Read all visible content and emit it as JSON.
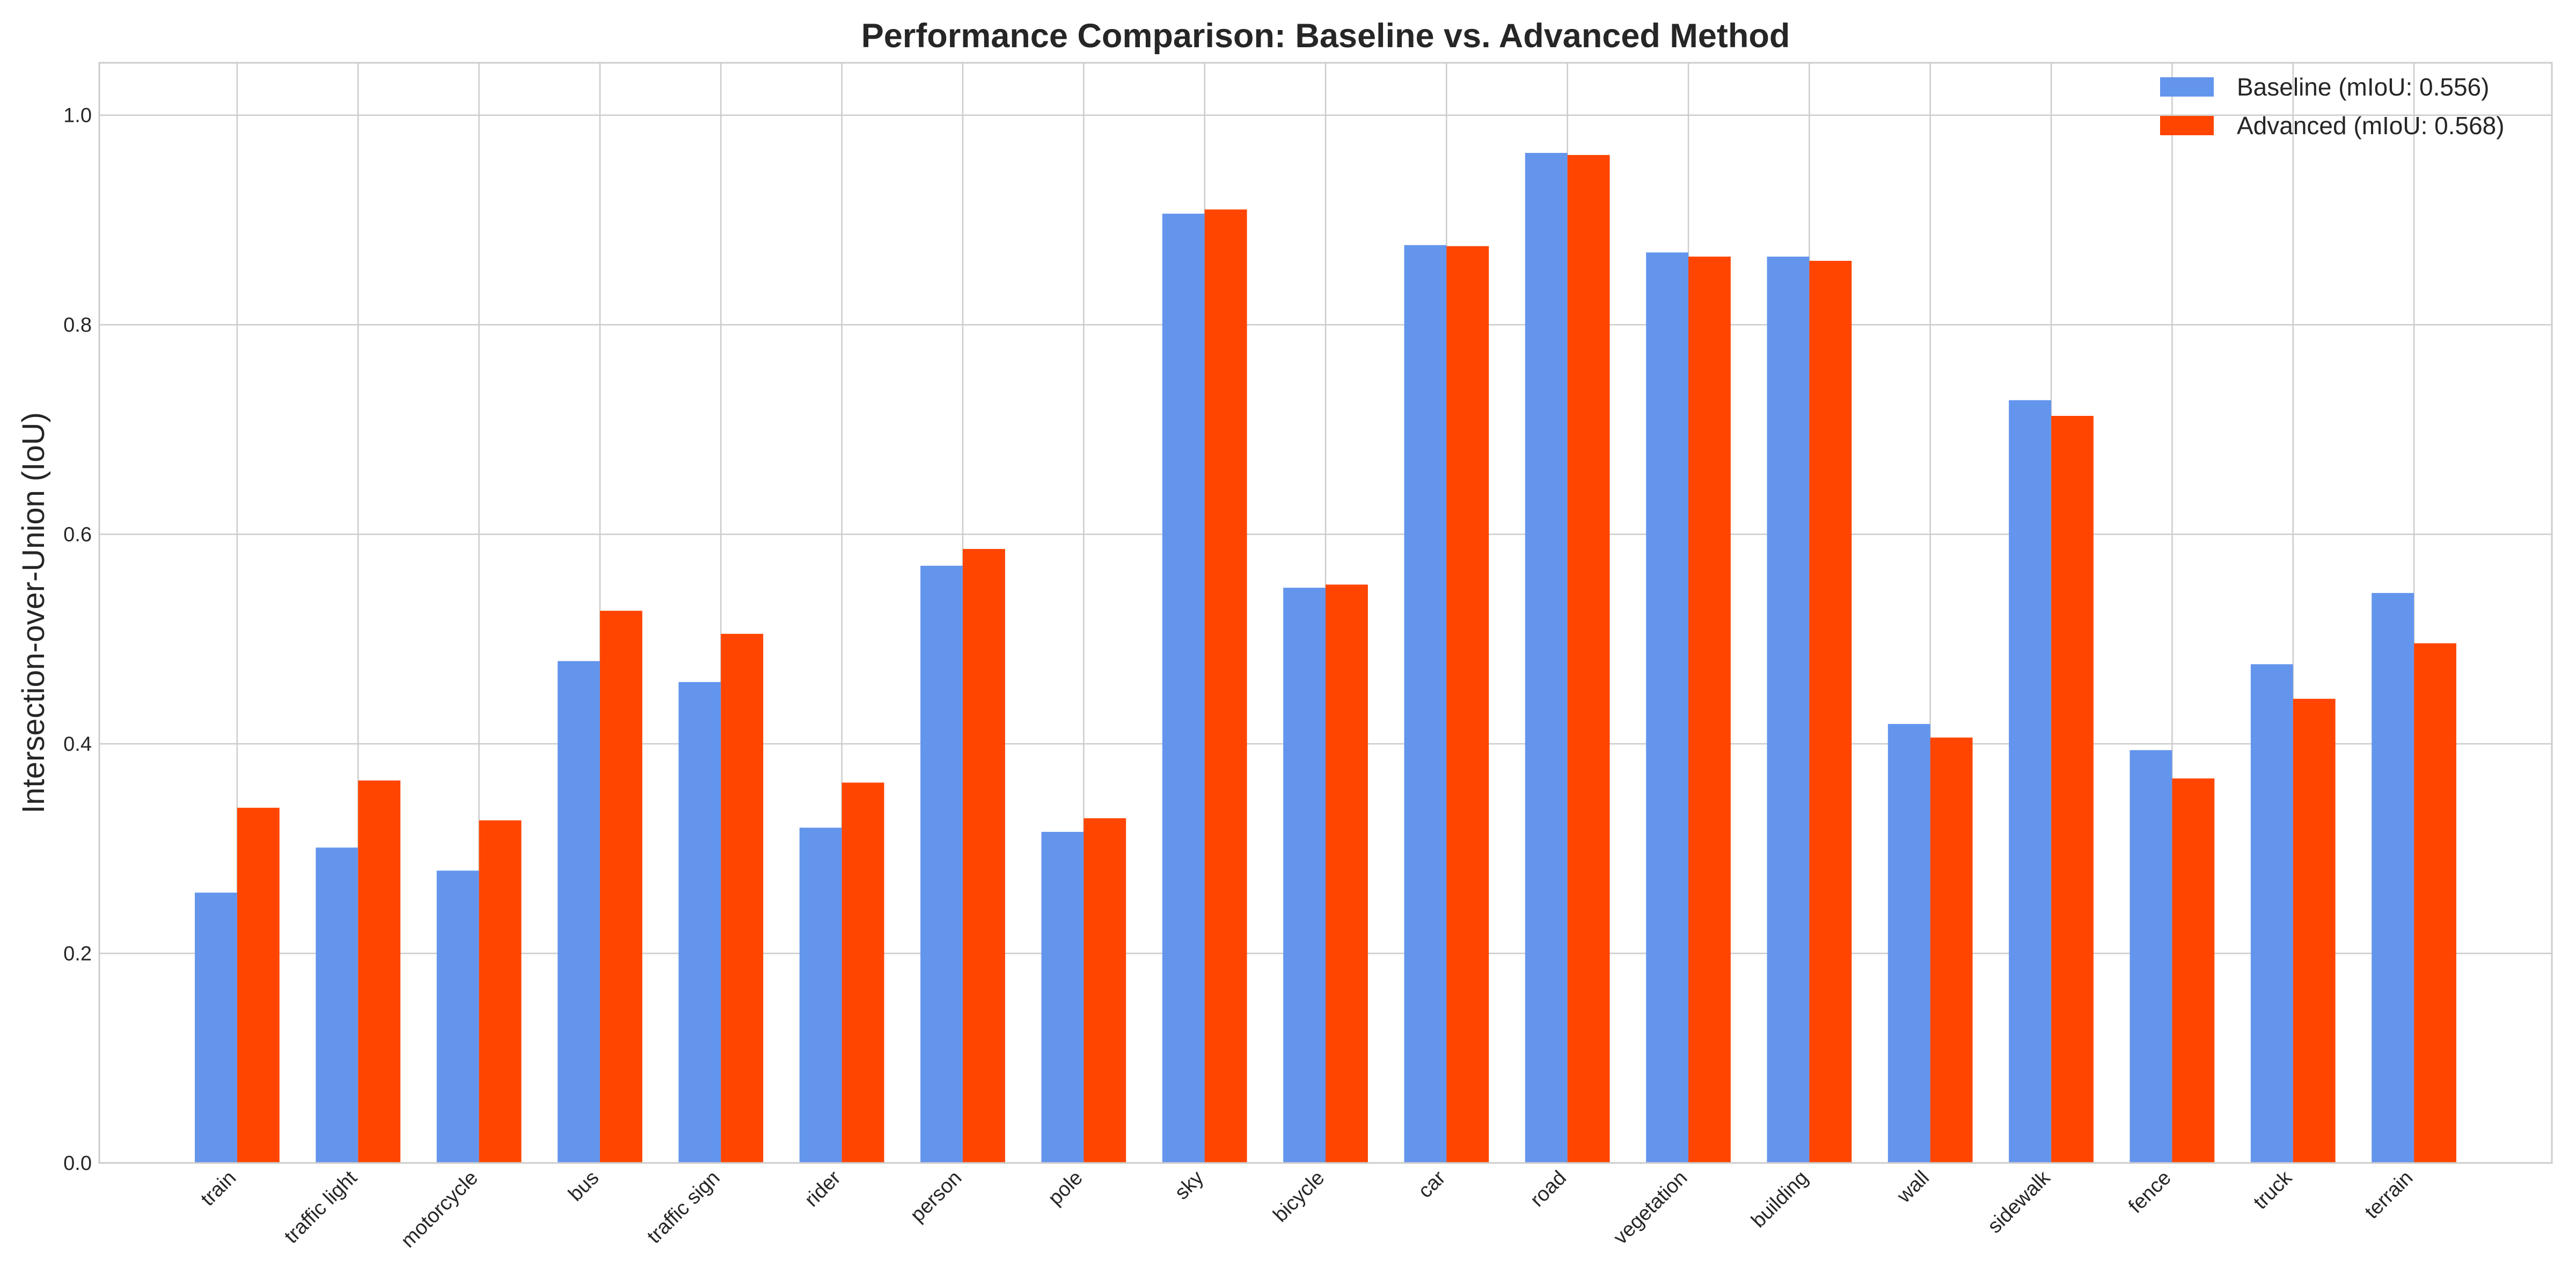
{
  "chart_data": {
    "type": "bar",
    "title": "Performance Comparison: Baseline vs. Advanced Method",
    "xlabel": "",
    "ylabel": "Intersection-over-Union (IoU)",
    "ylim": [
      0,
      1.05
    ],
    "yticks": [
      0.0,
      0.2,
      0.4,
      0.6,
      0.8,
      1.0
    ],
    "ytick_labels": [
      "0.0",
      "0.2",
      "0.4",
      "0.6",
      "0.8",
      "1.0"
    ],
    "grid": true,
    "legend_position": "top-right",
    "categories": [
      "train",
      "traffic light",
      "motorcycle",
      "bus",
      "traffic sign",
      "rider",
      "person",
      "pole",
      "sky",
      "bicycle",
      "car",
      "road",
      "vegetation",
      "building",
      "wall",
      "sidewalk",
      "fence",
      "truck",
      "terrain"
    ],
    "series": [
      {
        "name": "Baseline (mIoU: 0.556)",
        "color": "#6495ED",
        "values": [
          0.258,
          0.301,
          0.279,
          0.479,
          0.459,
          0.32,
          0.57,
          0.316,
          0.906,
          0.549,
          0.876,
          0.964,
          0.869,
          0.865,
          0.419,
          0.728,
          0.394,
          0.476,
          0.544
        ]
      },
      {
        "name": "Advanced (mIoU: 0.568)",
        "color": "#FF4500",
        "values": [
          0.339,
          0.365,
          0.327,
          0.527,
          0.505,
          0.363,
          0.586,
          0.329,
          0.91,
          0.552,
          0.875,
          0.962,
          0.865,
          0.861,
          0.406,
          0.713,
          0.367,
          0.443,
          0.496
        ]
      }
    ]
  },
  "colors": {
    "grid": "#cccccc",
    "axes_edge": "#cccccc",
    "text": "#262626",
    "background": "#ffffff"
  }
}
